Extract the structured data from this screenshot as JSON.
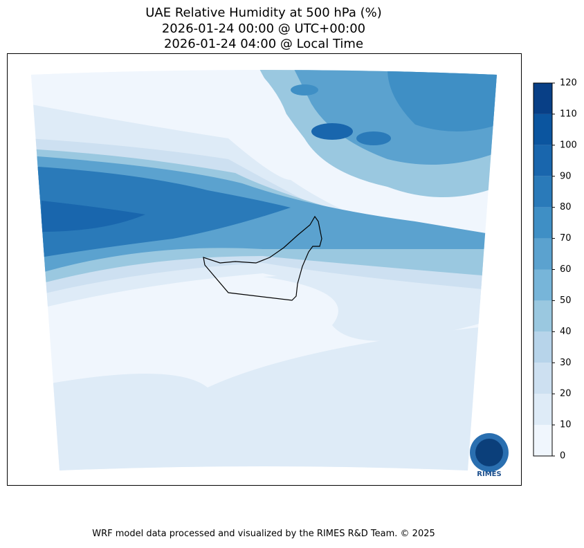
{
  "map": {
    "title": [
      "UAE Relative Humidity at 500 hPa (%)",
      "2026-01-24 00:00 @ UTC+00:00",
      "2026-01-24 04:00 @ Local Time"
    ],
    "colorbar": {
      "levels": [
        0,
        10,
        20,
        30,
        40,
        50,
        60,
        70,
        80,
        90,
        100,
        110,
        120
      ],
      "colors": [
        "#f0f6fd",
        "#deebf7",
        "#cde0f1",
        "#b7d4ea",
        "#9ac8e0",
        "#77b5d9",
        "#5ba2cf",
        "#3f8fc5",
        "#2a7ab9",
        "#1966ad",
        "#0b559f",
        "#083f86"
      ]
    },
    "logo": "RIMES",
    "footer": "WRF model data processed and visualized by the RIMES R&D Team. © 2025"
  }
}
